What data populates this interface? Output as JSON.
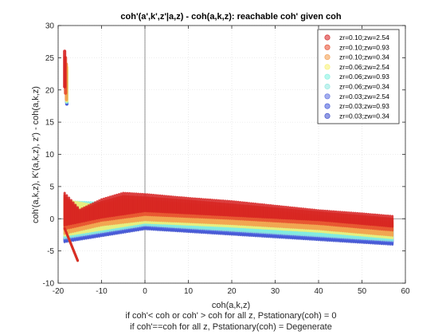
{
  "chart_data": {
    "type": "scatter",
    "title": "coh'(a',k',z'|a,z) - coh(a,k,z): reachable coh' given coh",
    "xlabel": "coh(a,k,z)",
    "ylabel": "coh'(a,k,z), K'(a,k,z), z') - coh(a,k,z)",
    "notes": [
      "if coh'< coh or coh' > coh for all z, Pstationary(coh) = 0",
      "if coh'==coh for all z, Pstationary(coh) = Degenerate"
    ],
    "xlim": [
      -20,
      60
    ],
    "ylim": [
      -10,
      30
    ],
    "xticks": [
      -20,
      -10,
      0,
      10,
      20,
      30,
      40,
      50,
      60
    ],
    "yticks": [
      -10,
      -5,
      0,
      5,
      10,
      15,
      20,
      25,
      30
    ],
    "grid": true,
    "legend_position": "top-right",
    "series": [
      {
        "name": "zr=0.10;zw=2.54",
        "color": "#d62020",
        "upper": [
          [
            -18.5,
            4.0
          ],
          [
            -15,
            1.4
          ],
          [
            -10,
            3.0
          ],
          [
            -5,
            4.0
          ],
          [
            0,
            3.8
          ],
          [
            10,
            3.2
          ],
          [
            20,
            2.7
          ],
          [
            30,
            2.0
          ],
          [
            40,
            1.3
          ],
          [
            50,
            0.8
          ],
          [
            57,
            0.4
          ]
        ],
        "lower": [
          [
            -18.5,
            -1.0
          ],
          [
            -10,
            0.2
          ],
          [
            0,
            1.2
          ],
          [
            20,
            0.5
          ],
          [
            40,
            -0.2
          ],
          [
            57,
            -1.2
          ]
        ],
        "cliff": {
          "x": -18.5,
          "y": [
            20.5,
            26.0
          ]
        }
      },
      {
        "name": "zr=0.10;zw=0.93",
        "color": "#e64b2d",
        "upper": [
          [
            -18.5,
            3.6
          ],
          [
            -15,
            1.2
          ],
          [
            -10,
            2.6
          ],
          [
            -5,
            3.5
          ],
          [
            0,
            3.3
          ],
          [
            10,
            2.8
          ],
          [
            20,
            2.2
          ],
          [
            30,
            1.6
          ],
          [
            40,
            1.0
          ],
          [
            50,
            0.4
          ],
          [
            57,
            0.0
          ]
        ],
        "lower": [
          [
            -18.5,
            -1.6
          ],
          [
            -10,
            -0.3
          ],
          [
            0,
            0.6
          ],
          [
            20,
            0.0
          ],
          [
            40,
            -0.8
          ],
          [
            57,
            -1.8
          ]
        ],
        "cliff": {
          "x": -18.3,
          "y": [
            19.5,
            25.0
          ]
        }
      },
      {
        "name": "zr=0.10;zw=0.34",
        "color": "#f39a4a",
        "upper": [
          [
            -18.5,
            3.2
          ],
          [
            -15,
            0.9
          ],
          [
            -10,
            2.2
          ],
          [
            -5,
            3.0
          ],
          [
            0,
            2.8
          ],
          [
            10,
            2.3
          ],
          [
            20,
            1.7
          ],
          [
            30,
            1.1
          ],
          [
            40,
            0.4
          ],
          [
            50,
            -0.2
          ],
          [
            57,
            -0.6
          ]
        ],
        "lower": [
          [
            -18.5,
            -2.3
          ],
          [
            -10,
            -1.0
          ],
          [
            0,
            -0.2
          ],
          [
            20,
            -0.8
          ],
          [
            40,
            -1.6
          ],
          [
            57,
            -2.6
          ]
        ],
        "cliff": {
          "x": -18.1,
          "y": [
            18.5,
            24.0
          ]
        }
      },
      {
        "name": "zr=0.06;zw=2.54",
        "color": "#f7f070",
        "upper": [
          [
            -18.5,
            2.9
          ],
          [
            -10,
            1.9
          ],
          [
            0,
            2.4
          ],
          [
            20,
            1.3
          ],
          [
            40,
            0.0
          ],
          [
            57,
            -1.0
          ]
        ],
        "lower": [
          [
            -18.5,
            -2.6
          ],
          [
            0,
            -0.6
          ],
          [
            20,
            -1.2
          ],
          [
            40,
            -2.0
          ],
          [
            57,
            -3.0
          ]
        ],
        "cliff": {
          "x": -18.0,
          "y": [
            18.3,
            23.5
          ]
        }
      },
      {
        "name": "zr=0.06;zw=0.93",
        "color": "#80f0e0",
        "upper": [
          [
            -18.5,
            2.7
          ],
          [
            0,
            2.2
          ],
          [
            20,
            1.1
          ],
          [
            57,
            -1.2
          ]
        ],
        "lower": [
          [
            -18.5,
            -2.8
          ],
          [
            0,
            -0.8
          ],
          [
            57,
            -3.2
          ]
        ],
        "cliff": {
          "x": -18.0,
          "y": [
            18.2,
            23.0
          ]
        }
      },
      {
        "name": "zr=0.06;zw=0.34",
        "color": "#8fe8e0",
        "upper": [
          [
            -18.5,
            2.5
          ],
          [
            0,
            2.0
          ],
          [
            20,
            0.9
          ],
          [
            57,
            -1.4
          ]
        ],
        "lower": [
          [
            -18.5,
            -3.0
          ],
          [
            0,
            -1.0
          ],
          [
            57,
            -3.4
          ]
        ],
        "cliff": {
          "x": -18.0,
          "y": [
            18.1,
            22.5
          ]
        }
      },
      {
        "name": "zr=0.03;zw=2.54",
        "color": "#5b6ee0",
        "upper": [
          [
            -18.5,
            2.3
          ],
          [
            0,
            1.8
          ],
          [
            20,
            0.7
          ],
          [
            57,
            -1.6
          ]
        ],
        "lower": [
          [
            -18.5,
            -3.2
          ],
          [
            0,
            -1.2
          ],
          [
            57,
            -3.6
          ]
        ],
        "cliff": {
          "x": -18.0,
          "y": [
            18.0,
            22.0
          ]
        }
      },
      {
        "name": "zr=0.03;zw=0.93",
        "color": "#4055d8",
        "upper": [
          [
            -18.5,
            2.1
          ],
          [
            0,
            1.6
          ],
          [
            20,
            0.5
          ],
          [
            57,
            -1.8
          ]
        ],
        "lower": [
          [
            -18.5,
            -3.4
          ],
          [
            0,
            -1.4
          ],
          [
            57,
            -3.8
          ]
        ],
        "cliff": {
          "x": -18.0,
          "y": [
            17.9,
            21.5
          ]
        }
      },
      {
        "name": "zr=0.03;zw=0.34",
        "color": "#3a4bcc",
        "upper": [
          [
            -18.5,
            1.9
          ],
          [
            0,
            1.4
          ],
          [
            20,
            0.3
          ],
          [
            57,
            -2.0
          ]
        ],
        "lower": [
          [
            -18.5,
            -3.6
          ],
          [
            0,
            -1.6
          ],
          [
            57,
            -4.0
          ]
        ],
        "cliff": {
          "x": -18.0,
          "y": [
            17.8,
            21.0
          ]
        }
      }
    ]
  }
}
